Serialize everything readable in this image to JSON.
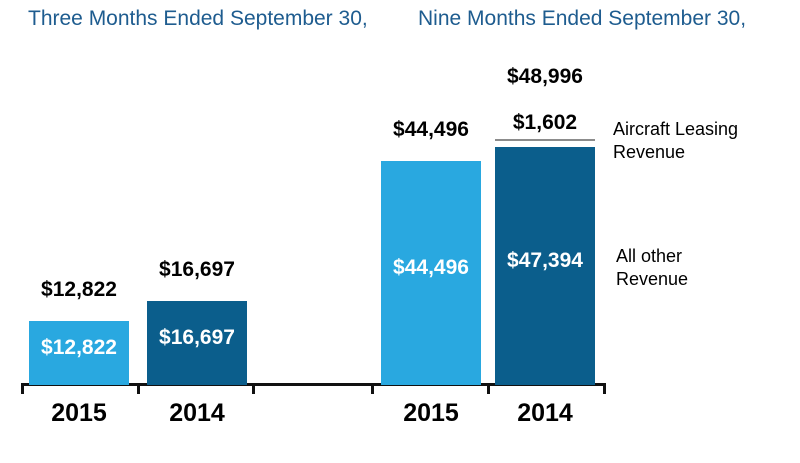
{
  "chart_data": {
    "type": "bar",
    "stacked": true,
    "group_titles": [
      "Three Months Ended September 30,",
      "Nine Months Ended September 30,"
    ],
    "series_labels": {
      "aircraft": "Aircraft Leasing Revenue",
      "all_other": "All other Revenue"
    },
    "x_labels": [
      "2015",
      "2014",
      "2015",
      "2014"
    ],
    "bars": [
      {
        "group": 0,
        "year": "2015",
        "total": 12822,
        "total_label": "$12,822",
        "segments": [
          {
            "series": "All other Revenue",
            "value": 12822,
            "label": "$12,822",
            "color_key": "light_blue",
            "label_position": "inside"
          }
        ]
      },
      {
        "group": 0,
        "year": "2014",
        "total": 16697,
        "total_label": "$16,697",
        "segments": [
          {
            "series": "All other Revenue",
            "value": 16697,
            "label": "$16,697",
            "color_key": "dark_blue",
            "label_position": "inside"
          }
        ]
      },
      {
        "group": 1,
        "year": "2015",
        "total": 44496,
        "total_label": "$44,496",
        "segments": [
          {
            "series": "All other Revenue",
            "value": 44496,
            "label": "$44,496",
            "color_key": "light_blue",
            "label_position": "inside"
          }
        ]
      },
      {
        "group": 1,
        "year": "2014",
        "total": 48996,
        "total_label": "$48,996",
        "segments": [
          {
            "series": "Aircraft Leasing Revenue",
            "value": 1602,
            "label": "$1,602",
            "color_key": "white_outline",
            "label_position": "above"
          },
          {
            "series": "All other Revenue",
            "value": 47394,
            "label": "$47,394",
            "color_key": "dark_blue",
            "label_position": "inside"
          }
        ]
      }
    ],
    "colors": {
      "light_blue": "#29A8E0",
      "dark_blue": "#0B5E8C",
      "white_outline": "#FFFFFF",
      "title_text": "#1E5C8F",
      "axis": "#111111",
      "segment_hairline": "#8C8C8C"
    }
  }
}
